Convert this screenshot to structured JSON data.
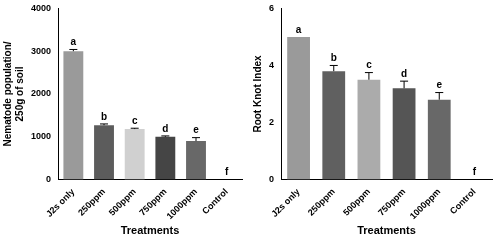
{
  "chart_data": [
    {
      "type": "bar",
      "categories": [
        "J2s only",
        "250ppm",
        "500ppm",
        "750ppm",
        "1000ppm",
        "Control"
      ],
      "values": [
        3000,
        1270,
        1180,
        1000,
        900,
        0
      ],
      "errors": [
        40,
        30,
        20,
        20,
        80,
        0
      ],
      "letters": [
        "a",
        "b",
        "c",
        "d",
        "e",
        "f"
      ],
      "colors": [
        "#9a9a9a",
        "#5c5c5c",
        "#d0d0d0",
        "#454545",
        "#686868",
        "#686868"
      ],
      "x_label": "Treatments",
      "y_label": [
        "Nematode population/",
        "250g of soil"
      ],
      "ylim": [
        0,
        4000
      ],
      "yticks": [
        0,
        1000,
        2000,
        3000,
        4000
      ],
      "grid": false
    },
    {
      "type": "bar",
      "categories": [
        "J2s only",
        "250ppm",
        "500ppm",
        "750ppm",
        "1000ppm",
        "Control"
      ],
      "values": [
        5.0,
        3.8,
        3.5,
        3.2,
        2.8,
        0
      ],
      "errors": [
        0,
        0.2,
        0.25,
        0.25,
        0.25,
        0
      ],
      "letters": [
        "a",
        "b",
        "c",
        "d",
        "e",
        "f"
      ],
      "colors": [
        "#9a9a9a",
        "#606060",
        "#ababab",
        "#555555",
        "#686868",
        "#686868"
      ],
      "x_label": "Treatments",
      "y_label": "Root Knot Index",
      "ylim": [
        0,
        6
      ],
      "yticks": [
        0,
        2,
        4,
        6
      ],
      "grid": false
    }
  ]
}
